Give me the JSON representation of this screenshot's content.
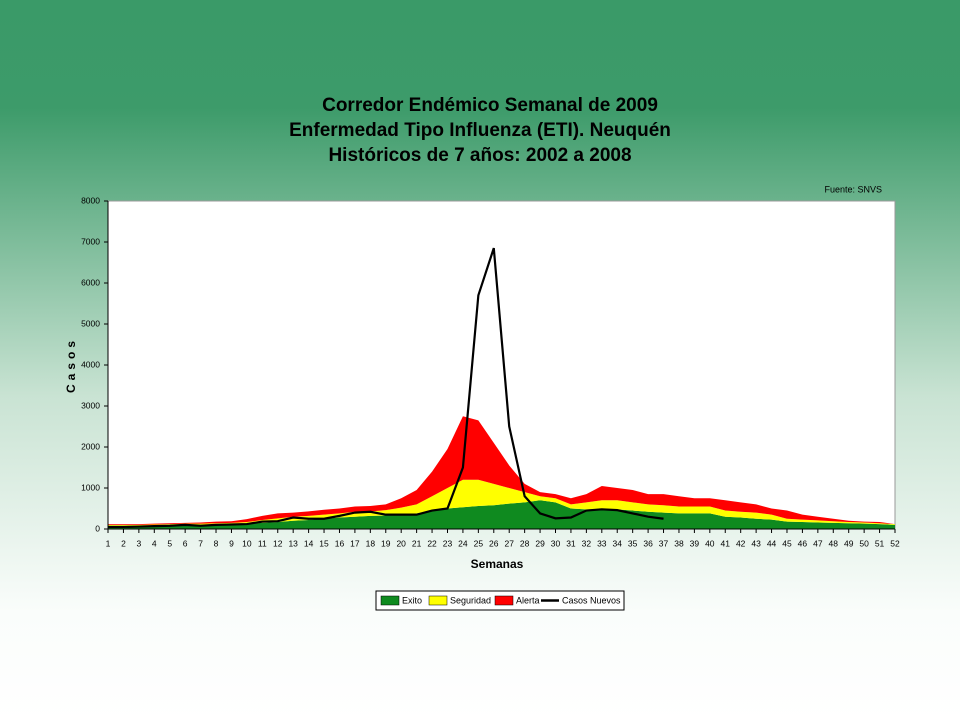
{
  "chart_data": {
    "type": "stacked-area-line",
    "title": [
      "Corredor Endémico Semanal de 2009",
      "Enfermedad Tipo Influenza (ETI).  Neuquén",
      "Históricos de 7 años: 2002 a 2008"
    ],
    "source": "Fuente: SNVS",
    "x_label": "Semanas",
    "y_label": "Casos",
    "categories": [
      "1",
      "2",
      "3",
      "4",
      "5",
      "6",
      "7",
      "8",
      "9",
      "10",
      "11",
      "12",
      "13",
      "14",
      "15",
      "16",
      "17",
      "18",
      "19",
      "20",
      "21",
      "22",
      "23",
      "24",
      "25",
      "26",
      "27",
      "28",
      "29",
      "30",
      "31",
      "32",
      "33",
      "34",
      "35",
      "36",
      "37",
      "38",
      "39",
      "40",
      "41",
      "42",
      "43",
      "44",
      "45",
      "46",
      "47",
      "48",
      "49",
      "50",
      "51",
      "52"
    ],
    "ylim": [
      0,
      8000
    ],
    "yticks": [
      0,
      1000,
      2000,
      3000,
      4000,
      5000,
      6000,
      7000,
      8000
    ],
    "series": [
      {
        "name": "Exito",
        "color": "#0f8a1f",
        "kind": "area",
        "values": [
          80,
          80,
          80,
          90,
          100,
          100,
          100,
          110,
          120,
          130,
          150,
          170,
          200,
          220,
          250,
          280,
          300,
          320,
          330,
          340,
          380,
          450,
          500,
          530,
          560,
          580,
          620,
          650,
          700,
          650,
          500,
          480,
          490,
          480,
          450,
          420,
          400,
          380,
          380,
          380,
          300,
          280,
          250,
          230,
          180,
          170,
          160,
          150,
          140,
          130,
          120,
          100
        ]
      },
      {
        "name": "Seguridad",
        "color": "#ffff00",
        "kind": "area",
        "values": [
          20,
          20,
          20,
          20,
          20,
          30,
          30,
          30,
          30,
          40,
          70,
          90,
          100,
          100,
          100,
          100,
          120,
          110,
          130,
          180,
          220,
          350,
          500,
          670,
          640,
          520,
          380,
          250,
          100,
          100,
          100,
          170,
          210,
          220,
          200,
          180,
          180,
          170,
          170,
          170,
          150,
          140,
          150,
          120,
          70,
          60,
          50,
          40,
          30,
          30,
          20,
          20
        ]
      },
      {
        "name": "Alerta",
        "color": "#ff0000",
        "kind": "area",
        "values": [
          20,
          20,
          20,
          20,
          20,
          20,
          30,
          40,
          40,
          70,
          100,
          120,
          100,
          110,
          120,
          120,
          130,
          130,
          140,
          230,
          350,
          600,
          950,
          1550,
          1450,
          1000,
          550,
          200,
          100,
          100,
          150,
          200,
          350,
          300,
          300,
          250,
          270,
          250,
          200,
          200,
          250,
          230,
          200,
          150,
          200,
          120,
          90,
          60,
          30,
          20,
          30,
          0
        ]
      },
      {
        "name": "Casos Nuevos",
        "color": "#000000",
        "kind": "line",
        "values": [
          50,
          50,
          60,
          70,
          80,
          100,
          80,
          100,
          110,
          120,
          180,
          190,
          280,
          250,
          250,
          320,
          400,
          420,
          350,
          350,
          350,
          450,
          500,
          1500,
          5700,
          6850,
          2500,
          800,
          380,
          260,
          280,
          450,
          480,
          460,
          380,
          300,
          250,
          null,
          null,
          null,
          null,
          null,
          null,
          null,
          null,
          null,
          null,
          null,
          null,
          null,
          null,
          null
        ]
      }
    ]
  }
}
